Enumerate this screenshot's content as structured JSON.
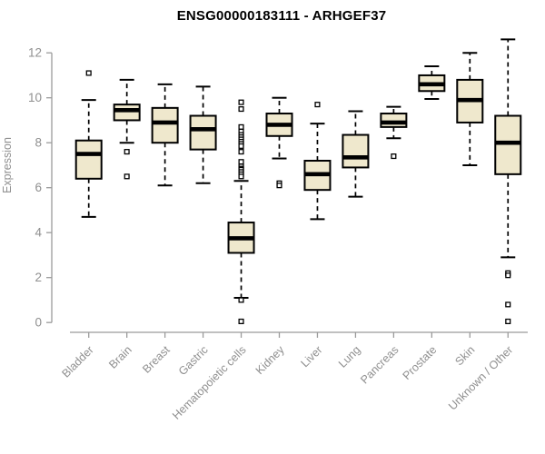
{
  "chart_data": {
    "type": "boxplot",
    "title": "ENSG00000183111 - ARHGEF37",
    "ylabel": "Expression",
    "xlabel": "",
    "ylim": [
      0,
      12.65
    ],
    "yticks": [
      0,
      2,
      4,
      6,
      8,
      10,
      12
    ],
    "grid": false,
    "legend": "none",
    "colors": {
      "box_fill": "#EFE8CD",
      "box_border": "#000000",
      "median": "#000000",
      "whisker": "#000000",
      "axis_line": "#9B9B9B",
      "tick_label": "#8F8F8F",
      "title": "#000000",
      "background": "#FFFFFF"
    },
    "categories": [
      "Bladder",
      "Brain",
      "Breast",
      "Gastric",
      "Hematopoietic cells",
      "Kidney",
      "Liver",
      "Lung",
      "Pancreas",
      "Prostate",
      "Skin",
      "Unknown / Other"
    ],
    "boxes": [
      {
        "label": "Bladder",
        "low": 4.7,
        "q1": 6.4,
        "median": 7.5,
        "q3": 8.1,
        "high": 9.9,
        "outliers": [
          11.1
        ]
      },
      {
        "label": "Brain",
        "low": 8.0,
        "q1": 9.0,
        "median": 9.45,
        "q3": 9.7,
        "high": 10.8,
        "outliers": [
          7.6,
          6.5
        ]
      },
      {
        "label": "Breast",
        "low": 6.1,
        "q1": 8.0,
        "median": 8.9,
        "q3": 9.55,
        "high": 10.6,
        "outliers": []
      },
      {
        "label": "Gastric",
        "low": 6.2,
        "q1": 7.7,
        "median": 8.6,
        "q3": 9.2,
        "high": 10.5,
        "outliers": []
      },
      {
        "label": "Hematopoietic cells",
        "low": 1.1,
        "q1": 3.1,
        "median": 3.75,
        "q3": 4.45,
        "high": 6.3,
        "outliers": [
          9.8,
          9.5,
          8.7,
          8.5,
          8.35,
          8.25,
          8.15,
          8.05,
          7.95,
          7.85,
          7.6,
          7.15,
          6.95,
          6.85,
          6.8,
          6.7,
          6.6,
          6.5,
          1.0,
          0.05
        ]
      },
      {
        "label": "Kidney",
        "low": 7.3,
        "q1": 8.3,
        "median": 8.8,
        "q3": 9.3,
        "high": 10.0,
        "outliers": [
          6.2,
          6.1
        ]
      },
      {
        "label": "Liver",
        "low": 4.6,
        "q1": 5.9,
        "median": 6.6,
        "q3": 7.2,
        "high": 8.85,
        "outliers": [
          9.7
        ]
      },
      {
        "label": "Lung",
        "low": 5.6,
        "q1": 6.9,
        "median": 7.35,
        "q3": 8.35,
        "high": 9.4,
        "outliers": []
      },
      {
        "label": "Pancreas",
        "low": 8.2,
        "q1": 8.7,
        "median": 8.9,
        "q3": 9.3,
        "high": 9.6,
        "outliers": [
          7.4
        ]
      },
      {
        "label": "Prostate",
        "low": 9.95,
        "q1": 10.3,
        "median": 10.6,
        "q3": 11.0,
        "high": 11.4,
        "outliers": []
      },
      {
        "label": "Skin",
        "low": 7.0,
        "q1": 8.9,
        "median": 9.9,
        "q3": 10.8,
        "high": 12.0,
        "outliers": []
      },
      {
        "label": "Unknown / Other",
        "low": 2.9,
        "q1": 6.6,
        "median": 8.0,
        "q3": 9.2,
        "high": 12.6,
        "outliers": [
          2.2,
          2.1,
          0.8,
          0.05
        ]
      }
    ]
  }
}
